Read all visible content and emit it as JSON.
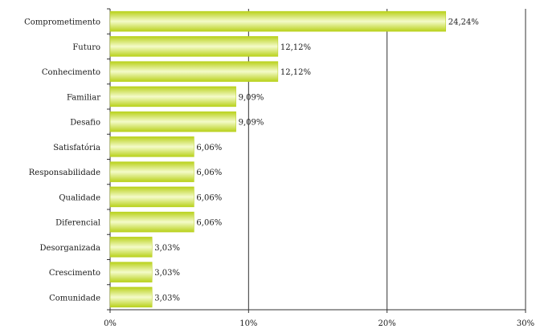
{
  "chart_data": {
    "type": "bar",
    "orientation": "horizontal",
    "categories": [
      "Comprometimento",
      "Futuro",
      "Conhecimento",
      "Familiar",
      "Desafio",
      "Satisfatória",
      "Responsabilidade",
      "Qualidade",
      "Diferencial",
      "Desorganizada",
      "Crescimento",
      "Comunidade"
    ],
    "values": [
      24.24,
      12.12,
      12.12,
      9.09,
      9.09,
      6.06,
      6.06,
      6.06,
      6.06,
      3.03,
      3.03,
      3.03
    ],
    "data_labels": [
      "24,24%",
      "12,12%",
      "12,12%",
      "9,09%",
      "9,09%",
      "6,06%",
      "6,06%",
      "6,06%",
      "6,06%",
      "3,03%",
      "3,03%",
      "3,03%"
    ],
    "x_ticks": [
      "0%",
      "10%",
      "20%",
      "30%"
    ],
    "xlim": [
      0,
      30
    ],
    "grid": "vertical",
    "legend": "none",
    "colors": {
      "bar_dark": "#b9d11b",
      "bar_light": "#f4fbc9",
      "grid": "#333333",
      "text": "#1a1a1a"
    }
  }
}
